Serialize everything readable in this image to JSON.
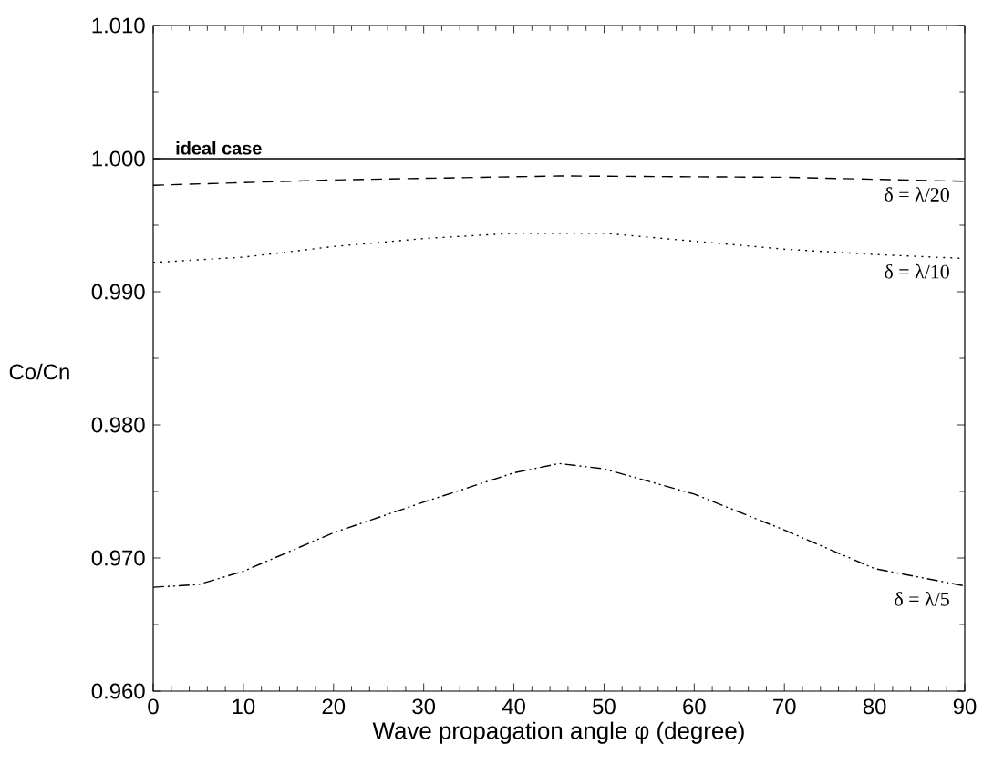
{
  "chart_data": {
    "type": "line",
    "xlabel": "Wave propagation angle  φ (degree)",
    "ylabel": "Co/Cn",
    "xlim": [
      0,
      90
    ],
    "xticks": [
      0,
      10,
      20,
      30,
      40,
      50,
      60,
      70,
      80,
      90
    ],
    "ylim": [
      0.96,
      1.01
    ],
    "yticks": [
      {
        "value": 0.96,
        "label": "0.960"
      },
      {
        "value": 0.97,
        "label": "0.970"
      },
      {
        "value": 0.98,
        "label": "0.980"
      },
      {
        "value": 0.99,
        "label": "0.990"
      },
      {
        "value": 1.0,
        "label": "1.000"
      },
      {
        "value": 1.01,
        "label": "1.010"
      }
    ],
    "grid": false,
    "marker": "none",
    "series": [
      {
        "name": "ideal case",
        "color": "#000000",
        "line_style": "solid",
        "x": [
          0,
          90
        ],
        "values": [
          1.0,
          1.0
        ]
      },
      {
        "name": "δ = λ/20",
        "color": "#000000",
        "line_style": "dashed",
        "x": [
          0,
          20,
          45,
          70,
          90
        ],
        "values": [
          0.998,
          0.9984,
          0.9987,
          0.9986,
          0.9983
        ]
      },
      {
        "name": "δ = λ/10",
        "color": "#000000",
        "line_style": "dotted",
        "x": [
          0,
          10,
          20,
          30,
          40,
          45,
          50,
          60,
          70,
          80,
          90
        ],
        "values": [
          0.9922,
          0.9926,
          0.9934,
          0.994,
          0.9944,
          0.9944,
          0.9944,
          0.9938,
          0.9932,
          0.9928,
          0.9925
        ]
      },
      {
        "name": "δ = λ/5",
        "color": "#000000",
        "line_style": "dashdotdotted",
        "x": [
          0,
          5,
          10,
          20,
          30,
          40,
          45,
          50,
          60,
          70,
          80,
          90
        ],
        "values": [
          0.9678,
          0.968,
          0.969,
          0.9719,
          0.9742,
          0.9764,
          0.9771,
          0.9767,
          0.9748,
          0.9721,
          0.9692,
          0.9679
        ]
      }
    ]
  }
}
